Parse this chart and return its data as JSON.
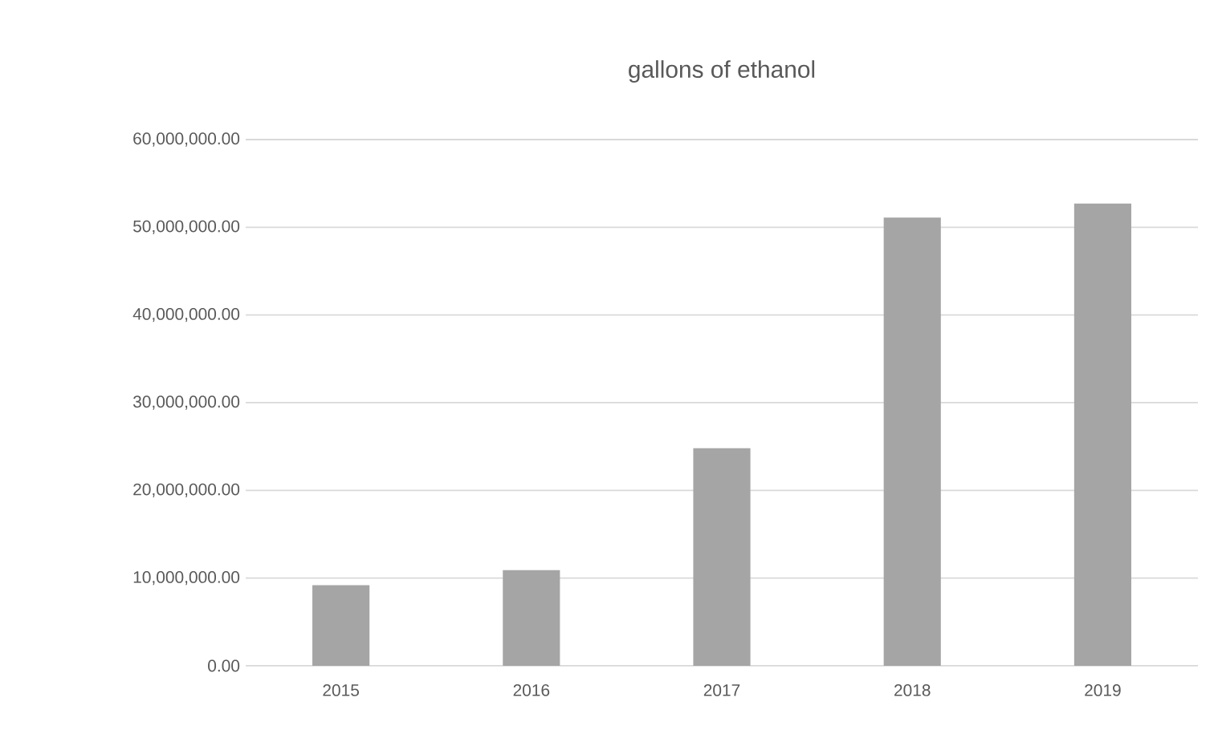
{
  "chart_data": {
    "type": "bar",
    "title": "gallons of ethanol",
    "categories": [
      "2015",
      "2016",
      "2017",
      "2018",
      "2019"
    ],
    "values": [
      9200000,
      10900000,
      24800000,
      51100000,
      52700000
    ],
    "color": "#a5a5a5",
    "ylim": [
      0,
      60000000
    ],
    "yticks": [
      {
        "value": 0,
        "label": "0.00"
      },
      {
        "value": 10000000,
        "label": "10,000,000.00"
      },
      {
        "value": 20000000,
        "label": "20,000,000.00"
      },
      {
        "value": 30000000,
        "label": "30,000,000.00"
      },
      {
        "value": 40000000,
        "label": "40,000,000.00"
      },
      {
        "value": 50000000,
        "label": "50,000,000.00"
      },
      {
        "value": 60000000,
        "label": "60,000,000.00"
      }
    ],
    "grid": "y"
  }
}
